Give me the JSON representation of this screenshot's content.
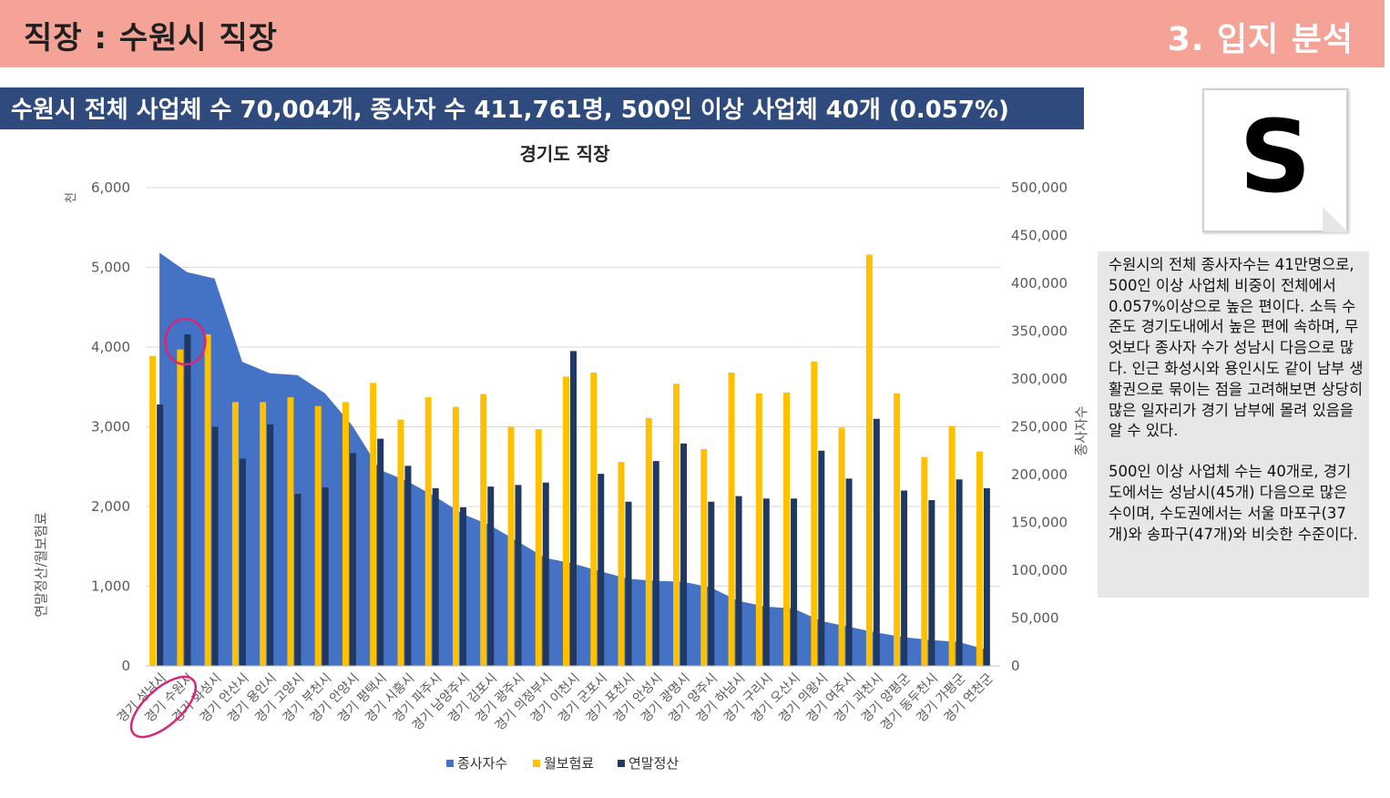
{
  "header": {
    "title": "직장 : 수원시 직장",
    "section": "3. 입지 분석"
  },
  "banner": {
    "text": "수원시 전체 사업체 수 70,004개, 종사자 수 411,761명, 500인 이상 사업체 40개 (0.057%)"
  },
  "logo": {
    "letter": "S"
  },
  "description": {
    "p1": "수원시의 전체 종사자수는 41만명으로, 500인 이상 사업체 비중이 전체에서 0.057%이상으로 높은 편이다. 소득 수준도 경기도내에서 높은 편에 속하며, 무엇보다 종사자 수가 성남시 다음으로 많다. 인근 화성시와 용인시도 같이 남부 생활권으로 묶이는 점을 고려해보면 상당히 많은 일자리가 경기 남부에 몰려 있음을 알 수 있다.",
    "p2": "500인 이상 사업체 수는 40개로, 경기도에서는 성남시(45개) 다음으로 많은 수이며, 수도권에서는 서울 마포구(37개)와 송파구(47개)와 비슷한 수준이다."
  },
  "chart_data": {
    "type": "bar",
    "title": "경기도 직장",
    "ylabel_left": "연말정산/월보험료",
    "ylabel_left_unit": "천",
    "ylabel_right": "종사자수",
    "ylim_left": [
      0,
      6000
    ],
    "ylim_right": [
      0,
      500000
    ],
    "yticks_left": [
      "0",
      "1,000",
      "2,000",
      "3,000",
      "4,000",
      "5,000",
      "6,000"
    ],
    "yticks_right": [
      "0",
      "50,000",
      "100,000",
      "150,000",
      "200,000",
      "250,000",
      "300,000",
      "350,000",
      "400,000",
      "450,000",
      "500,000"
    ],
    "grid": true,
    "legend_position": "bottom",
    "highlight_category": "경기 수원시",
    "categories": [
      "경기 성남시",
      "경기 수원시",
      "경기 화성시",
      "경기 안산시",
      "경기 용인시",
      "경기 고양시",
      "경기 부천시",
      "경기 안양시",
      "경기 평택시",
      "경기 시흥시",
      "경기 파주시",
      "경기 남양주시",
      "경기 김포시",
      "경기 광주시",
      "경기 의정부시",
      "경기 이천시",
      "경기 군포시",
      "경기 포천시",
      "경기 안성시",
      "경기 광명시",
      "경기 양주시",
      "경기 하남시",
      "경기 구리시",
      "경기 오산시",
      "경기 의왕시",
      "경기 여주시",
      "경기 과천시",
      "경기 양평군",
      "경기 동두천시",
      "경기 가평군",
      "경기 연천군"
    ],
    "series": [
      {
        "name": "종사자수",
        "type": "area",
        "axis": "right",
        "color": "#4472c4",
        "values": [
          432000,
          411761,
          405000,
          318000,
          306000,
          304000,
          285000,
          251000,
          205000,
          193000,
          177000,
          159000,
          147000,
          130000,
          113000,
          107000,
          99000,
          91000,
          89000,
          88000,
          82000,
          68000,
          62000,
          60000,
          47000,
          41000,
          35000,
          30000,
          27000,
          25000,
          17000
        ]
      },
      {
        "name": "월보험료",
        "type": "bar",
        "axis": "left",
        "color": "#ffc000",
        "values": [
          3890,
          3970,
          4160,
          3310,
          3310,
          3370,
          3260,
          3310,
          3550,
          3090,
          3370,
          3250,
          3410,
          3000,
          2970,
          3630,
          3680,
          2560,
          3110,
          3540,
          2720,
          3680,
          3420,
          3430,
          3820,
          2990,
          5160,
          3420,
          2620,
          3010,
          2690
        ]
      },
      {
        "name": "연말정산",
        "type": "bar",
        "axis": "left",
        "color": "#203864",
        "values": [
          3280,
          4160,
          3000,
          2600,
          3030,
          2160,
          2240,
          2670,
          2850,
          2510,
          2230,
          1990,
          2250,
          2270,
          2300,
          3950,
          2410,
          2060,
          2570,
          2790,
          2060,
          2130,
          2100,
          2100,
          2700,
          2350,
          3100,
          2200,
          2080,
          2340,
          2230
        ]
      }
    ]
  }
}
